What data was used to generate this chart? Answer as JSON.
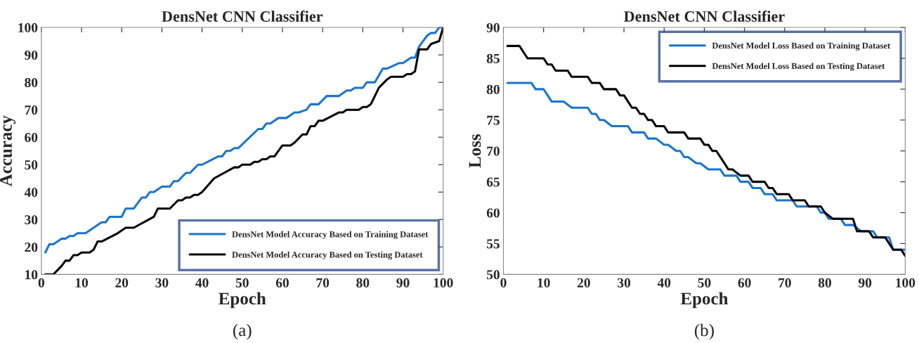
{
  "chart_data": [
    {
      "type": "line",
      "title": "DensNet CNN Classifier",
      "xlabel": "Epoch",
      "ylabel": "Accuracy",
      "xlim": [
        0,
        100
      ],
      "ylim": [
        10,
        100
      ],
      "xticks": [
        0,
        10,
        20,
        30,
        40,
        50,
        60,
        70,
        80,
        90,
        100
      ],
      "yticks": [
        10,
        20,
        30,
        40,
        50,
        60,
        70,
        80,
        90,
        100
      ],
      "legend": "bottom right",
      "annotations": [
        "(a)"
      ],
      "series": [
        {
          "name": "DensNet Model Accuracy Based on Training Dataset",
          "color": "#1a75cf",
          "x": [
            1,
            2,
            3,
            5,
            6,
            7,
            8,
            9,
            11,
            15,
            16,
            17,
            20,
            21,
            23,
            25,
            26,
            27,
            28,
            30,
            32,
            33,
            34,
            36,
            37,
            39,
            40,
            44,
            45,
            46,
            47,
            48,
            49,
            54,
            55,
            56,
            57,
            59,
            61,
            63,
            64,
            66,
            67,
            69,
            71,
            74,
            76,
            77,
            78,
            80,
            81,
            83,
            85,
            86,
            89,
            90,
            92,
            93,
            94,
            96,
            97,
            98,
            99,
            100
          ],
          "values": [
            18,
            21,
            21,
            23,
            23,
            24,
            24,
            25,
            25,
            29,
            29,
            31,
            31,
            34,
            34,
            38,
            38,
            40,
            40,
            42,
            42,
            44,
            44,
            47,
            47,
            50,
            50,
            53,
            53,
            55,
            55,
            56,
            56,
            63,
            63,
            65,
            65,
            67,
            67,
            69,
            69,
            70,
            72,
            72,
            75,
            75,
            77,
            77,
            78,
            78,
            80,
            80,
            85,
            85,
            87,
            87,
            89,
            89,
            93,
            97,
            98,
            98,
            100,
            100
          ]
        },
        {
          "name": "DensNet Model Accuracy Based on Testing Dataset",
          "color": "#000000",
          "x": [
            1,
            3,
            5,
            6,
            7,
            8,
            9,
            10,
            12,
            13,
            14,
            15,
            19,
            21,
            23,
            28,
            29,
            32,
            34,
            35,
            36,
            37,
            38,
            39,
            40,
            43,
            48,
            49,
            50,
            52,
            53,
            54,
            55,
            56,
            57,
            58,
            60,
            62,
            63,
            65,
            66,
            67,
            68,
            69,
            70,
            74,
            75,
            76,
            79,
            80,
            81,
            82,
            84,
            86,
            87,
            90,
            91,
            92,
            93,
            94,
            96,
            97,
            99,
            100
          ],
          "values": [
            10,
            10,
            13,
            15,
            15,
            17,
            17,
            18,
            18,
            19,
            22,
            22,
            25,
            27,
            27,
            31,
            34,
            34,
            37,
            37,
            38,
            38,
            39,
            39,
            40,
            45,
            49,
            49,
            50,
            50,
            51,
            51,
            52,
            52,
            53,
            53,
            57,
            57,
            58,
            61,
            61,
            64,
            64,
            66,
            66,
            69,
            69,
            70,
            70,
            71,
            71,
            72,
            78,
            81,
            82,
            82,
            83,
            83,
            84,
            92,
            92,
            94,
            95,
            100
          ]
        }
      ]
    },
    {
      "type": "line",
      "title": "DensNet CNN Classifier",
      "xlabel": "Epoch",
      "ylabel": "Loss",
      "xlim": [
        0,
        100
      ],
      "ylim": [
        50,
        90
      ],
      "xticks": [
        0,
        10,
        20,
        30,
        40,
        50,
        60,
        70,
        80,
        90,
        100
      ],
      "yticks": [
        50,
        55,
        60,
        65,
        70,
        75,
        80,
        85,
        90
      ],
      "legend": "top right",
      "annotations": [
        "(b)"
      ],
      "series": [
        {
          "name": "DensNet Model Loss Based on Training Dataset",
          "color": "#1a75cf",
          "x": [
            1,
            7,
            8,
            10,
            12,
            15,
            17,
            21,
            22,
            23,
            24,
            25,
            27,
            31,
            32,
            35,
            36,
            38,
            40,
            41,
            43,
            44,
            45,
            46,
            48,
            49,
            51,
            54,
            55,
            58,
            59,
            61,
            62,
            64,
            65,
            67,
            68,
            72,
            73,
            78,
            79,
            80,
            81,
            84,
            85,
            87,
            89,
            92,
            93,
            96,
            97,
            100
          ],
          "values": [
            81,
            81,
            80,
            80,
            78,
            78,
            77,
            77,
            76,
            76,
            75,
            75,
            74,
            74,
            73,
            73,
            72,
            72,
            71,
            71,
            70,
            70,
            69,
            69,
            68,
            68,
            67,
            67,
            66,
            66,
            65,
            65,
            64,
            64,
            63,
            63,
            62,
            62,
            61,
            61,
            60,
            60,
            59,
            59,
            58,
            58,
            57,
            57,
            56,
            56,
            54,
            54
          ]
        },
        {
          "name": "DensNet Model Loss Based on Testing Dataset",
          "color": "#000000",
          "x": [
            1,
            4,
            6,
            10,
            11,
            12,
            13,
            16,
            17,
            21,
            22,
            24,
            25,
            28,
            29,
            30,
            32,
            33,
            34,
            35,
            36,
            37,
            38,
            40,
            41,
            45,
            46,
            49,
            50,
            51,
            52,
            53,
            56,
            57,
            59,
            61,
            62,
            65,
            66,
            67,
            68,
            71,
            72,
            75,
            76,
            79,
            80,
            82,
            87,
            88,
            91,
            92,
            95,
            97,
            99,
            100
          ],
          "values": [
            87,
            87,
            85,
            85,
            84,
            84,
            83,
            83,
            82,
            82,
            81,
            81,
            80,
            80,
            79,
            79,
            77,
            77,
            76,
            76,
            75,
            75,
            74,
            74,
            73,
            73,
            72,
            72,
            71,
            71,
            70,
            70,
            67,
            67,
            66,
            66,
            65,
            65,
            64,
            64,
            63,
            63,
            62,
            62,
            61,
            61,
            60,
            59,
            59,
            57,
            57,
            56,
            56,
            54,
            54,
            53
          ]
        }
      ]
    }
  ]
}
